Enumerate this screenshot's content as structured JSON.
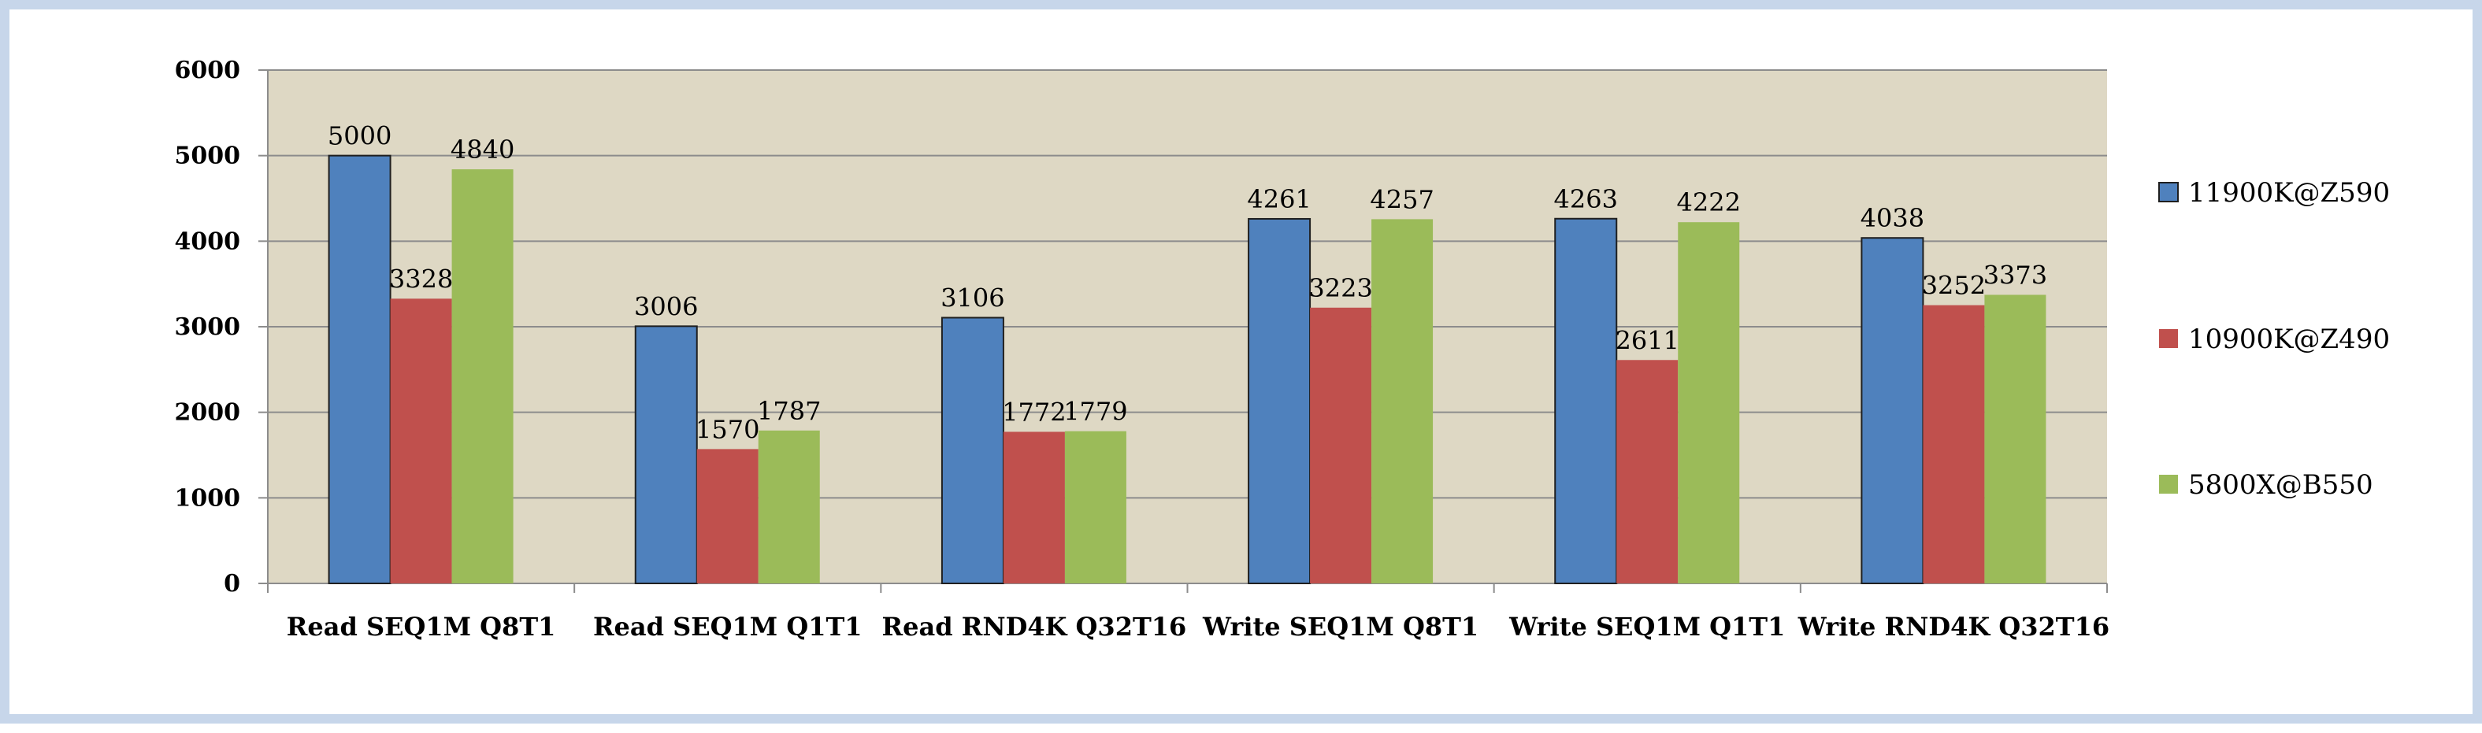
{
  "chart_data": {
    "type": "bar",
    "categories": [
      "Read SEQ1M Q8T1",
      "Read SEQ1M Q1T1",
      "Read RND4K Q32T16",
      "Write SEQ1M Q8T1",
      "Write SEQ1M Q1T1",
      "Write RND4K Q32T16"
    ],
    "series": [
      {
        "name": "11900K@Z590",
        "color": "#4f81bd",
        "values": [
          5000,
          3006,
          3106,
          4261,
          4263,
          4038
        ]
      },
      {
        "name": "10900K@Z490",
        "color": "#c0504d",
        "values": [
          3328,
          1570,
          1772,
          3223,
          2611,
          3252
        ]
      },
      {
        "name": "5800X@B550",
        "color": "#9bbb59",
        "values": [
          4840,
          1787,
          1779,
          4257,
          4222,
          3373
        ]
      }
    ],
    "y_ticks": [
      "0",
      "1000",
      "2000",
      "3000",
      "4000",
      "5000",
      "6000"
    ],
    "ylim": [
      0,
      6000
    ],
    "title": "",
    "xlabel": "",
    "ylabel": "",
    "grid": true,
    "legend_position": "right",
    "plot_background": "#ded8c4",
    "data_labels": true
  }
}
